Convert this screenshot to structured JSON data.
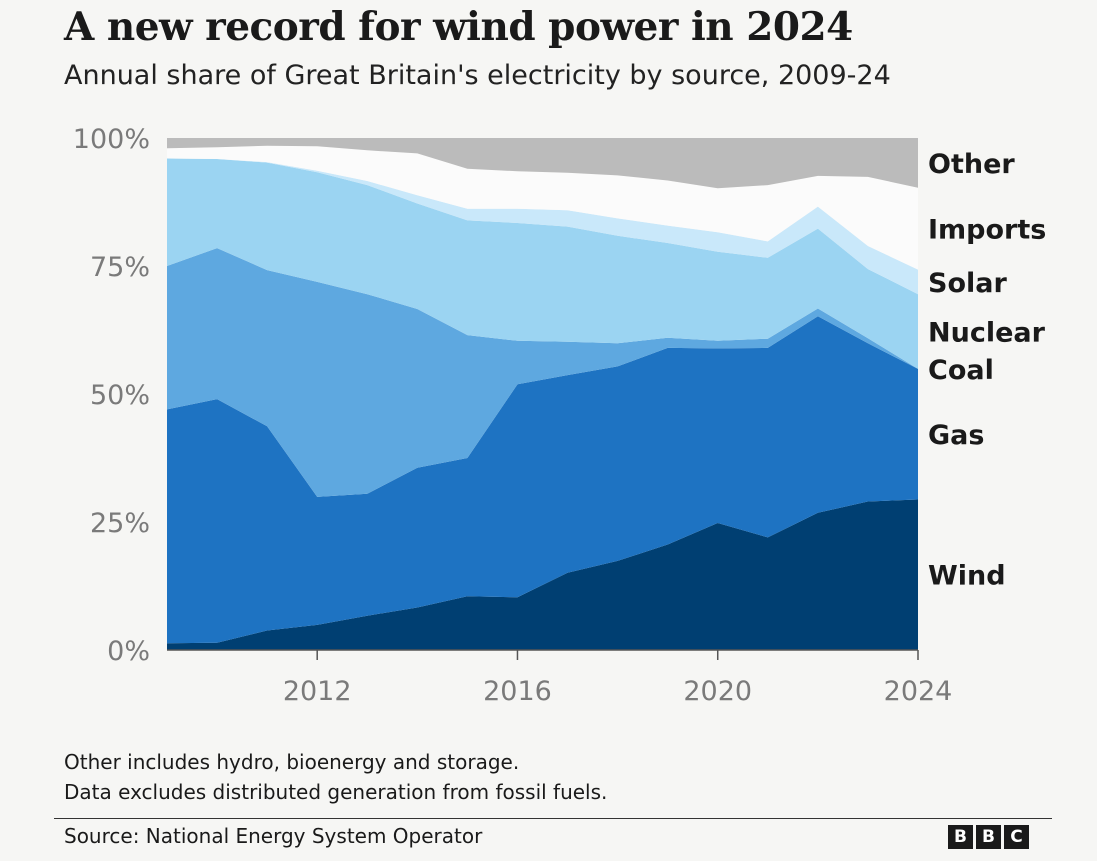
{
  "title": "A new record for wind power in 2024",
  "subtitle": "Annual share of Great Britain's electricity by source, 2009-24",
  "notes": [
    "Other includes hydro, bioenergy and storage.",
    "Data excludes distributed generation from fossil fuels."
  ],
  "source": "Source: National Energy System Operator",
  "logo": [
    "B",
    "B",
    "C"
  ],
  "chart_data": {
    "type": "area",
    "stacked": true,
    "x": [
      2009,
      2010,
      2011,
      2012,
      2013,
      2014,
      2015,
      2016,
      2017,
      2018,
      2019,
      2020,
      2021,
      2022,
      2023,
      2024
    ],
    "x_ticks": [
      "2012",
      "2016",
      "2020",
      "2024"
    ],
    "y_ticks": [
      "0%",
      "25%",
      "50%",
      "75%",
      "100%"
    ],
    "ylim": [
      0,
      100
    ],
    "legend_placement": "right, direct labels at end of areas",
    "series": [
      {
        "name": "Wind",
        "color": "#003f72",
        "values": [
          1.3,
          1.4,
          3.8,
          4.9,
          6.7,
          8.3,
          10.5,
          10.3,
          15.1,
          17.4,
          20.6,
          24.8,
          22.0,
          26.8,
          29.0,
          29.4
        ]
      },
      {
        "name": "Gas",
        "color": "#1e73c2",
        "values": [
          45.7,
          47.6,
          39.9,
          25.0,
          23.8,
          27.3,
          27.0,
          41.6,
          38.6,
          38.0,
          38.4,
          34.1,
          37.0,
          38.4,
          30.9,
          25.5
        ]
      },
      {
        "name": "Coal",
        "color": "#5ea8e0",
        "values": [
          28.0,
          29.5,
          30.5,
          42.0,
          39.0,
          31.0,
          24.0,
          8.5,
          6.5,
          4.5,
          2.0,
          1.5,
          1.8,
          1.5,
          1.0,
          0.0
        ]
      },
      {
        "name": "Nuclear",
        "color": "#9bd4f2",
        "values": [
          21.0,
          17.4,
          21.0,
          21.4,
          21.3,
          20.6,
          22.4,
          23.0,
          22.5,
          21.0,
          18.5,
          17.4,
          15.8,
          15.6,
          13.5,
          14.6
        ]
      },
      {
        "name": "Solar",
        "color": "#c9e8fa",
        "values": [
          0.0,
          0.0,
          0.1,
          0.3,
          0.8,
          1.6,
          2.3,
          2.8,
          3.2,
          3.4,
          3.4,
          3.8,
          3.2,
          4.3,
          4.5,
          4.8
        ]
      },
      {
        "name": "Imports",
        "color": "#fbfbfb",
        "values": [
          2.0,
          2.3,
          3.2,
          4.8,
          6.0,
          8.2,
          7.8,
          7.3,
          7.3,
          8.4,
          8.8,
          8.6,
          11.0,
          6.0,
          13.5,
          16.0
        ]
      },
      {
        "name": "Other",
        "color": "#bbbbbb",
        "values": [
          2.0,
          1.8,
          1.5,
          1.6,
          2.4,
          3.0,
          6.0,
          6.5,
          6.8,
          7.3,
          8.3,
          9.8,
          9.2,
          7.4,
          7.6,
          9.7
        ]
      }
    ]
  }
}
